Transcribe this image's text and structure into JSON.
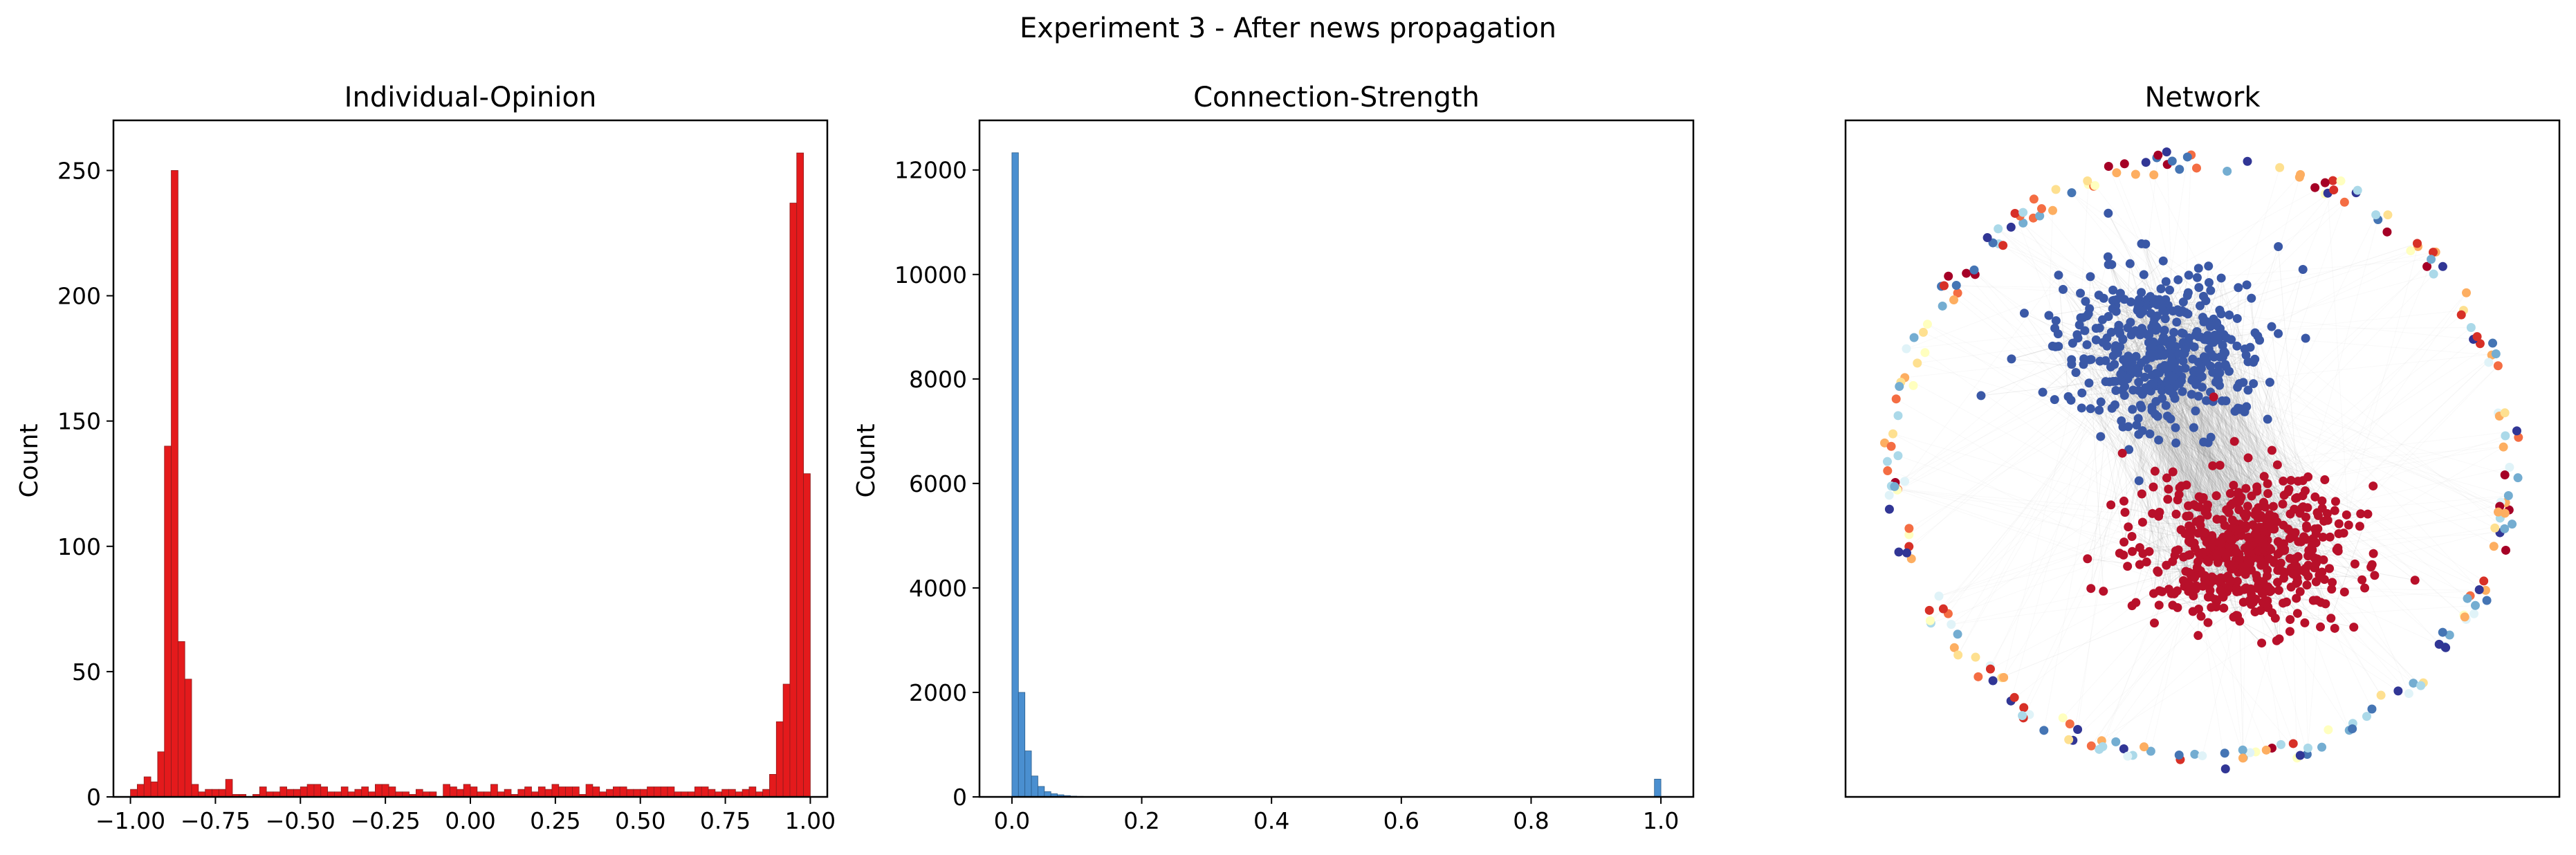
{
  "figure": {
    "suptitle": "Experiment 3 - After news propagation",
    "panels": [
      {
        "title": "Individual-Opinion",
        "ylabel": "Count"
      },
      {
        "title": "Connection-Strength",
        "ylabel": "Count"
      },
      {
        "title": "Network"
      }
    ]
  },
  "chart_data": [
    {
      "type": "bar",
      "title": "Individual-Opinion",
      "xlabel": "",
      "ylabel": "Count",
      "xlim": [
        -1.05,
        1.05
      ],
      "ylim": [
        0,
        270
      ],
      "xticks": [
        "−1.00",
        "−0.75",
        "−0.50",
        "−0.25",
        "0.00",
        "0.25",
        "0.50",
        "0.75",
        "1.00"
      ],
      "xtick_values": [
        -1.0,
        -0.75,
        -0.5,
        -0.25,
        0.0,
        0.25,
        0.5,
        0.75,
        1.0
      ],
      "yticks": [
        0,
        50,
        100,
        150,
        200,
        250
      ],
      "bin_start": -1.0,
      "bin_width": 0.02,
      "color": "#e41a1c",
      "edge_color": "#8c1c1c",
      "counts": [
        3,
        5,
        8,
        6,
        18,
        140,
        250,
        62,
        47,
        5,
        2,
        3,
        3,
        3,
        7,
        1,
        1,
        0,
        1,
        4,
        2,
        2,
        4,
        3,
        3,
        4,
        5,
        5,
        4,
        2,
        2,
        4,
        2,
        3,
        4,
        2,
        5,
        5,
        4,
        2,
        2,
        1,
        3,
        2,
        2,
        0,
        5,
        4,
        3,
        5,
        4,
        2,
        2,
        5,
        2,
        3,
        1,
        3,
        4,
        2,
        4,
        3,
        5,
        4,
        4,
        4,
        1,
        5,
        4,
        2,
        3,
        4,
        4,
        3,
        3,
        3,
        4,
        4,
        4,
        4,
        2,
        2,
        2,
        4,
        4,
        3,
        2,
        3,
        3,
        2,
        3,
        4,
        2,
        3,
        9,
        30,
        45,
        237,
        257,
        129
      ]
    },
    {
      "type": "bar",
      "title": "Connection-Strength",
      "xlabel": "",
      "ylabel": "Count",
      "xlim": [
        -0.05,
        1.05
      ],
      "ylim": [
        0,
        12950
      ],
      "xticks": [
        "0.0",
        "0.2",
        "0.4",
        "0.6",
        "0.8",
        "1.0"
      ],
      "xtick_values": [
        0.0,
        0.2,
        0.4,
        0.6,
        0.8,
        1.0
      ],
      "yticks": [
        0,
        2000,
        4000,
        6000,
        8000,
        10000,
        12000
      ],
      "bin_start": 0.0,
      "bin_width": 0.01,
      "color": "#4a8fd0",
      "edge_color": "#2b5d8a",
      "counts": [
        12330,
        2000,
        880,
        400,
        200,
        100,
        60,
        40,
        25,
        15,
        10,
        8,
        5,
        4,
        3,
        2,
        2,
        1,
        1,
        1,
        0,
        0,
        0,
        0,
        0,
        0,
        0,
        0,
        0,
        0,
        0,
        0,
        0,
        0,
        0,
        0,
        0,
        0,
        0,
        0,
        0,
        0,
        0,
        0,
        0,
        0,
        0,
        0,
        0,
        0,
        0,
        0,
        0,
        0,
        0,
        0,
        0,
        0,
        0,
        0,
        0,
        0,
        0,
        0,
        0,
        0,
        0,
        0,
        0,
        0,
        0,
        0,
        0,
        0,
        0,
        0,
        0,
        0,
        0,
        0,
        0,
        0,
        0,
        0,
        0,
        0,
        0,
        0,
        0,
        0,
        0,
        0,
        0,
        0,
        0,
        0,
        0,
        0,
        0,
        340
      ]
    },
    {
      "type": "network",
      "title": "Network",
      "node_colors": {
        "negative_cluster": "#3a58a6",
        "positive_cluster": "#b8102a",
        "ring": [
          "#313695",
          "#4575b4",
          "#74add1",
          "#abd9e9",
          "#e0f3f8",
          "#ffffbf",
          "#fee090",
          "#fdae61",
          "#f46d43",
          "#d73027",
          "#a50026"
        ]
      },
      "edge_color": "#9a9a9a",
      "cluster_nodes": {
        "negative": 420,
        "positive": 520
      },
      "ring_nodes": 230
    }
  ]
}
